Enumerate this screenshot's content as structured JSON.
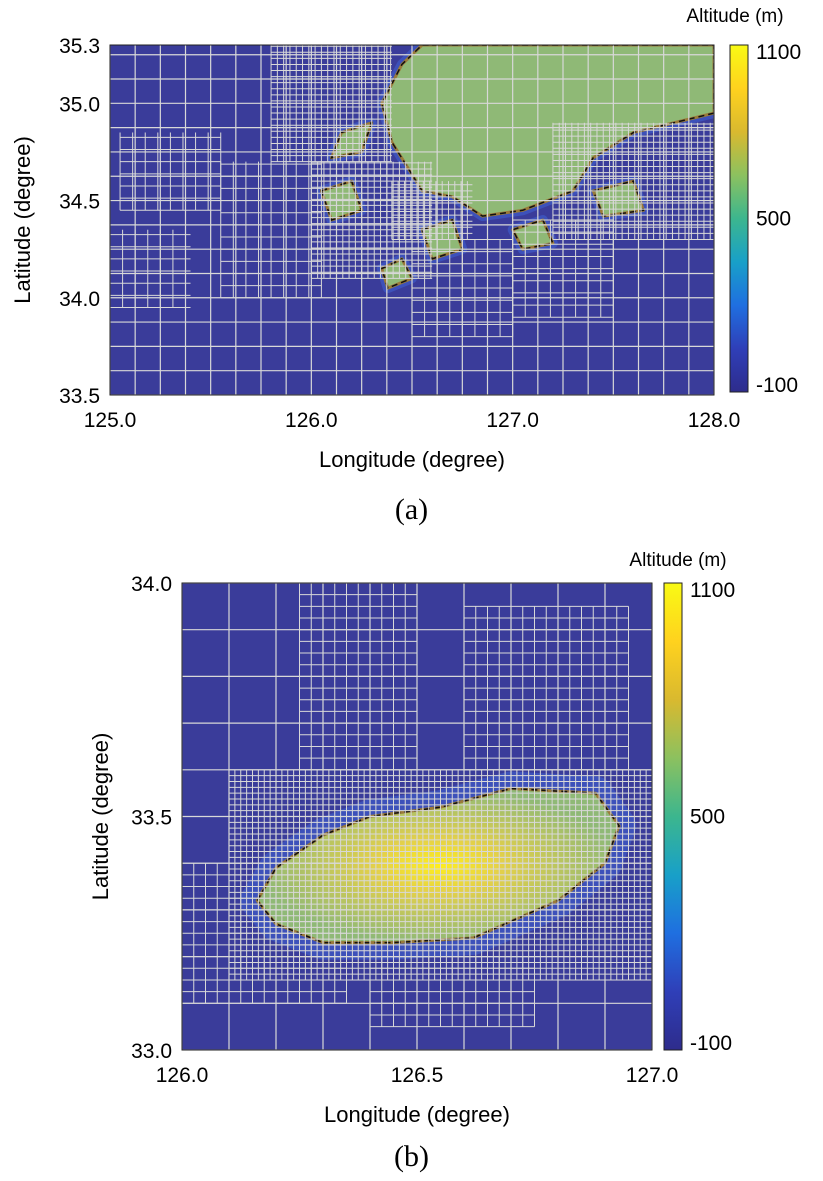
{
  "colorbar": {
    "stops": [
      "#2e2c8c",
      "#2f3fb8",
      "#1f6fe0",
      "#18a0c8",
      "#3cb68e",
      "#8cc15f",
      "#d9b92f",
      "#ffd21e",
      "#f9fa14"
    ],
    "colormap": "parula"
  },
  "colors": {
    "ocean": "#3a3c9a",
    "land": "#8fb976",
    "grid": "#d8d8d8",
    "coast_dark": "#111111",
    "coast_brown": "#9a7a3a"
  },
  "chart_data": [
    {
      "type": "heatmap",
      "panel": "(a)",
      "caption": "(a)",
      "title": "",
      "xlabel": "Longitude (degree)",
      "ylabel": "Latitude (degree)",
      "colorbar_label": "Altitude (m)",
      "xlim": [
        125.0,
        128.0
      ],
      "ylim": [
        33.5,
        35.3
      ],
      "xticks": [
        125.0,
        126.0,
        127.0,
        128.0
      ],
      "xtick_labels": [
        "125.0",
        "126.0",
        "127.0",
        "128.0"
      ],
      "yticks": [
        33.5,
        34.0,
        34.5,
        35.0,
        35.3
      ],
      "ytick_labels": [
        "33.5",
        "34.0",
        "34.5",
        "35.0",
        "35.3"
      ],
      "clim": [
        -100,
        1100
      ],
      "cticks": [
        -100,
        500,
        1100
      ],
      "ctick_labels": [
        "-100",
        "500",
        "1100"
      ],
      "grid": "adaptive quadtree mesh (fine near coast, coarse offshore)",
      "features": [
        {
          "kind": "land",
          "label": "",
          "polygon": [
            [
              126.6,
              35.3
            ],
            [
              128.0,
              35.3
            ],
            [
              128.0,
              34.95
            ],
            [
              127.6,
              34.85
            ],
            [
              127.4,
              34.72
            ],
            [
              127.3,
              34.55
            ],
            [
              127.05,
              34.45
            ],
            [
              126.85,
              34.42
            ],
            [
              126.7,
              34.52
            ],
            [
              126.55,
              34.55
            ],
            [
              126.4,
              34.8
            ],
            [
              126.35,
              35.0
            ],
            [
              126.45,
              35.2
            ],
            [
              126.55,
              35.3
            ]
          ]
        },
        {
          "kind": "island",
          "polygon": [
            [
              126.15,
              34.85
            ],
            [
              126.3,
              34.9
            ],
            [
              126.25,
              34.75
            ],
            [
              126.1,
              34.72
            ]
          ]
        },
        {
          "kind": "island",
          "polygon": [
            [
              126.05,
              34.55
            ],
            [
              126.2,
              34.6
            ],
            [
              126.25,
              34.45
            ],
            [
              126.1,
              34.4
            ]
          ]
        },
        {
          "kind": "island",
          "polygon": [
            [
              126.55,
              34.35
            ],
            [
              126.7,
              34.4
            ],
            [
              126.75,
              34.25
            ],
            [
              126.6,
              34.2
            ]
          ]
        },
        {
          "kind": "island",
          "polygon": [
            [
              127.0,
              34.35
            ],
            [
              127.15,
              34.4
            ],
            [
              127.2,
              34.28
            ],
            [
              127.05,
              34.25
            ]
          ]
        },
        {
          "kind": "island",
          "polygon": [
            [
              127.4,
              34.55
            ],
            [
              127.6,
              34.6
            ],
            [
              127.65,
              34.45
            ],
            [
              127.45,
              34.42
            ]
          ]
        },
        {
          "kind": "island",
          "polygon": [
            [
              126.35,
              34.15
            ],
            [
              126.45,
              34.2
            ],
            [
              126.5,
              34.1
            ],
            [
              126.38,
              34.05
            ]
          ]
        }
      ],
      "refinement_cells": [
        {
          "lon": [
            125.05,
            125.55
          ],
          "lat": [
            34.45,
            34.85
          ],
          "level": 2
        },
        {
          "lon": [
            125.0,
            125.4
          ],
          "lat": [
            33.95,
            34.35
          ],
          "level": 2
        },
        {
          "lon": [
            125.55,
            126.05
          ],
          "lat": [
            34.0,
            34.7
          ],
          "level": 2
        },
        {
          "lon": [
            125.8,
            126.4
          ],
          "lat": [
            34.7,
            35.3
          ],
          "level": 3
        },
        {
          "lon": [
            126.0,
            126.6
          ],
          "lat": [
            34.1,
            34.7
          ],
          "level": 3
        },
        {
          "lon": [
            126.5,
            127.0
          ],
          "lat": [
            33.8,
            34.3
          ],
          "level": 2
        },
        {
          "lon": [
            127.0,
            127.5
          ],
          "lat": [
            33.9,
            34.4
          ],
          "level": 2
        },
        {
          "lon": [
            127.2,
            128.0
          ],
          "lat": [
            34.3,
            34.9
          ],
          "level": 3
        },
        {
          "lon": [
            126.4,
            126.8
          ],
          "lat": [
            34.3,
            34.6
          ],
          "level": 3
        }
      ]
    },
    {
      "type": "heatmap",
      "panel": "(b)",
      "caption": "(b)",
      "title": "",
      "xlabel": "Longitude (degree)",
      "ylabel": "Latitude (degree)",
      "colorbar_label": "Altitude (m)",
      "xlim": [
        126.0,
        127.0
      ],
      "ylim": [
        33.0,
        34.0
      ],
      "xticks": [
        126.0,
        126.5,
        127.0
      ],
      "xtick_labels": [
        "126.0",
        "126.5",
        "127.0"
      ],
      "yticks": [
        33.0,
        33.5,
        34.0
      ],
      "ytick_labels": [
        "33.0",
        "33.5",
        "34.0"
      ],
      "clim": [
        -100,
        1100
      ],
      "cticks": [
        -100,
        500,
        1100
      ],
      "ctick_labels": [
        "-100",
        "500",
        "1100"
      ],
      "grid": "adaptive quadtree mesh (fine near coast, coarse offshore)",
      "peak": {
        "lon": 126.53,
        "lat": 33.36,
        "altitude": 1100
      },
      "features": [
        {
          "kind": "island",
          "label": "",
          "polygon": [
            [
              126.16,
              33.32
            ],
            [
              126.2,
              33.39
            ],
            [
              126.3,
              33.46
            ],
            [
              126.4,
              33.5
            ],
            [
              126.55,
              33.52
            ],
            [
              126.7,
              33.56
            ],
            [
              126.88,
              33.55
            ],
            [
              126.93,
              33.48
            ],
            [
              126.9,
              33.4
            ],
            [
              126.8,
              33.32
            ],
            [
              126.62,
              33.24
            ],
            [
              126.45,
              33.23
            ],
            [
              126.3,
              33.23
            ],
            [
              126.2,
              33.27
            ]
          ]
        }
      ],
      "refinement_cells": [
        {
          "lon": [
            126.1,
            127.0
          ],
          "lat": [
            33.15,
            33.6
          ],
          "level": 4
        },
        {
          "lon": [
            126.25,
            126.5
          ],
          "lat": [
            33.6,
            34.0
          ],
          "level": 3
        },
        {
          "lon": [
            126.6,
            126.95
          ],
          "lat": [
            33.6,
            33.95
          ],
          "level": 3
        },
        {
          "lon": [
            126.0,
            126.35
          ],
          "lat": [
            33.1,
            33.4
          ],
          "level": 3
        },
        {
          "lon": [
            126.4,
            126.75
          ],
          "lat": [
            33.05,
            33.2
          ],
          "level": 3
        }
      ]
    }
  ]
}
